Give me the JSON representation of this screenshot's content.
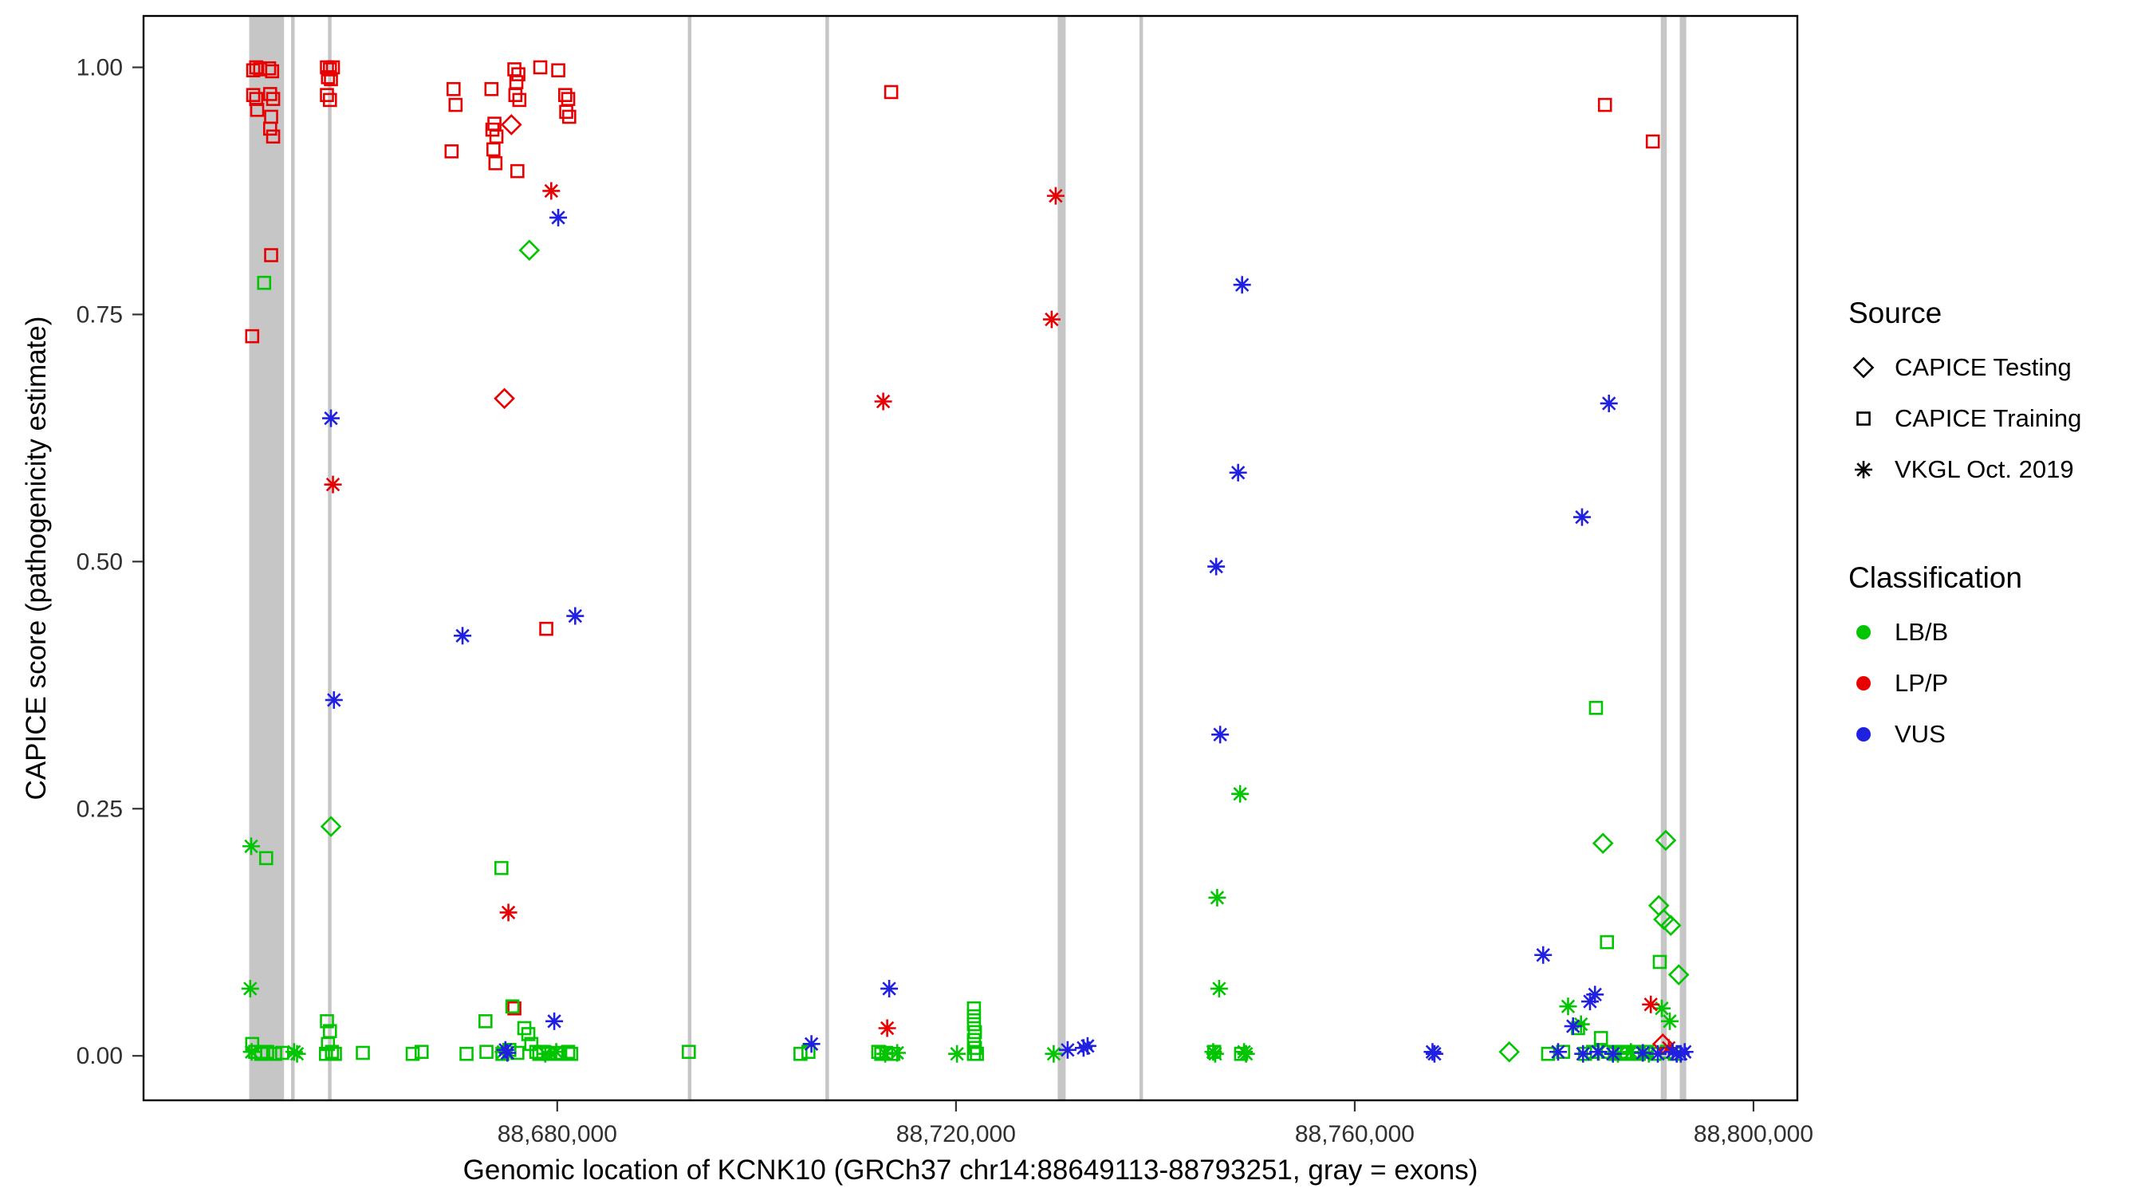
{
  "figure": {
    "background": "#ffffff"
  },
  "chart_data": {
    "type": "scatter",
    "title": "",
    "xlabel": "Genomic location of KCNK10 (GRCh37 chr14:88649113-88793251, gray = exons)",
    "ylabel": "CAPICE score (pathogenicity estimate)",
    "xlim": [
      88638500,
      88804400
    ],
    "ylim": [
      -0.045,
      1.052
    ],
    "grid": false,
    "legend_position": "right",
    "x_ticks": [
      {
        "value": 88680000,
        "label": "88,680,000"
      },
      {
        "value": 88720000,
        "label": "88,720,000"
      },
      {
        "value": 88760000,
        "label": "88,760,000"
      },
      {
        "value": 88800000,
        "label": "88,800,000"
      }
    ],
    "y_ticks": [
      {
        "value": 0.0,
        "label": "0.00"
      },
      {
        "value": 0.25,
        "label": "0.25"
      },
      {
        "value": 0.5,
        "label": "0.50"
      },
      {
        "value": 0.75,
        "label": "0.75"
      },
      {
        "value": 1.0,
        "label": "1.00"
      }
    ],
    "exon_color": "#c6c6c6",
    "exons": [
      [
        88649100,
        88652600
      ],
      [
        88653300,
        88653600
      ],
      [
        88657000,
        88657300
      ],
      [
        88693100,
        88693400
      ],
      [
        88706900,
        88707200
      ],
      [
        88730200,
        88731000
      ],
      [
        88738400,
        88738700
      ],
      [
        88790700,
        88791300
      ],
      [
        88792600,
        88793250
      ]
    ],
    "classes": {
      "LB/B": "#00c500",
      "LP/P": "#e80000",
      "VUS": "#2020e0"
    },
    "sources": {
      "CAPICE Testing": "diamond",
      "CAPICE Training": "square",
      "VKGL Oct. 2019": "asterisk"
    },
    "series": [
      {
        "name": "CAPICE Training / LP/P",
        "source": "CAPICE Training",
        "classification": "LP/P",
        "points": [
          [
            88649500,
            0.997
          ],
          [
            88649800,
            1.0
          ],
          [
            88650200,
            0.998
          ],
          [
            88651100,
            0.999
          ],
          [
            88651400,
            0.996
          ],
          [
            88649500,
            0.972
          ],
          [
            88649800,
            0.968
          ],
          [
            88651200,
            0.973
          ],
          [
            88651500,
            0.968
          ],
          [
            88649900,
            0.957
          ],
          [
            88651300,
            0.95
          ],
          [
            88651200,
            0.938
          ],
          [
            88651500,
            0.93
          ],
          [
            88651300,
            0.81
          ],
          [
            88649400,
            0.728
          ],
          [
            88656900,
            1.0
          ],
          [
            88657200,
            0.998
          ],
          [
            88657500,
            1.0
          ],
          [
            88657000,
            0.99
          ],
          [
            88657300,
            0.988
          ],
          [
            88656900,
            0.972
          ],
          [
            88657200,
            0.967
          ],
          [
            88669600,
            0.978
          ],
          [
            88669800,
            0.962
          ],
          [
            88669400,
            0.915
          ],
          [
            88673400,
            0.978
          ],
          [
            88673700,
            0.943
          ],
          [
            88673500,
            0.937
          ],
          [
            88673900,
            0.93
          ],
          [
            88673600,
            0.917
          ],
          [
            88673800,
            0.903
          ],
          [
            88675700,
            0.998
          ],
          [
            88676100,
            0.993
          ],
          [
            88675900,
            0.985
          ],
          [
            88675800,
            0.972
          ],
          [
            88676200,
            0.967
          ],
          [
            88676000,
            0.895
          ],
          [
            88678300,
            1.0
          ],
          [
            88680100,
            0.997
          ],
          [
            88680800,
            0.972
          ],
          [
            88681100,
            0.968
          ],
          [
            88680900,
            0.955
          ],
          [
            88681200,
            0.95
          ],
          [
            88678900,
            0.432
          ],
          [
            88675700,
            0.048
          ],
          [
            88713500,
            0.975
          ],
          [
            88785100,
            0.962
          ],
          [
            88789900,
            0.925
          ]
        ]
      },
      {
        "name": "CAPICE Training / LB/B",
        "source": "CAPICE Training",
        "classification": "LB/B",
        "points": [
          [
            88650600,
            0.782
          ],
          [
            88650800,
            0.2
          ],
          [
            88649400,
            0.012
          ],
          [
            88649700,
            0.004
          ],
          [
            88650300,
            0.002
          ],
          [
            88650900,
            0.004
          ],
          [
            88651700,
            0.002
          ],
          [
            88652400,
            0.003
          ],
          [
            88656900,
            0.035
          ],
          [
            88657200,
            0.025
          ],
          [
            88657000,
            0.012
          ],
          [
            88657400,
            0.004
          ],
          [
            88657700,
            0.002
          ],
          [
            88656800,
            0.002
          ],
          [
            88660500,
            0.003
          ],
          [
            88665500,
            0.002
          ],
          [
            88666400,
            0.004
          ],
          [
            88674400,
            0.19
          ],
          [
            88672800,
            0.035
          ],
          [
            88675500,
            0.05
          ],
          [
            88676700,
            0.028
          ],
          [
            88677100,
            0.022
          ],
          [
            88677400,
            0.012
          ],
          [
            88670900,
            0.002
          ],
          [
            88672900,
            0.004
          ],
          [
            88674500,
            0.002
          ],
          [
            88675200,
            0.006
          ],
          [
            88676000,
            0.003
          ],
          [
            88677900,
            0.004
          ],
          [
            88678200,
            0.002
          ],
          [
            88678600,
            0.004
          ],
          [
            88679100,
            0.002
          ],
          [
            88680000,
            0.003
          ],
          [
            88680300,
            0.002
          ],
          [
            88681100,
            0.004
          ],
          [
            88681400,
            0.002
          ],
          [
            88693200,
            0.004
          ],
          [
            88704400,
            0.002
          ],
          [
            88705200,
            0.004
          ],
          [
            88712200,
            0.004
          ],
          [
            88712500,
            0.002
          ],
          [
            88713000,
            0.003
          ],
          [
            88713700,
            0.002
          ],
          [
            88721800,
            0.048
          ],
          [
            88721800,
            0.04
          ],
          [
            88721800,
            0.032
          ],
          [
            88721900,
            0.024
          ],
          [
            88721800,
            0.016
          ],
          [
            88721900,
            0.008
          ],
          [
            88721800,
            0.002
          ],
          [
            88722100,
            0.002
          ],
          [
            88745900,
            0.004
          ],
          [
            88748600,
            0.002
          ],
          [
            88784200,
            0.352
          ],
          [
            88785300,
            0.115
          ],
          [
            88790600,
            0.095
          ],
          [
            88779400,
            0.002
          ],
          [
            88780900,
            0.004
          ],
          [
            88782400,
            0.028
          ],
          [
            88783100,
            0.002
          ],
          [
            88783900,
            0.004
          ],
          [
            88784700,
            0.018
          ],
          [
            88785400,
            0.004
          ],
          [
            88786100,
            0.002
          ],
          [
            88786700,
            0.004
          ],
          [
            88787300,
            0.002
          ],
          [
            88787900,
            0.004
          ],
          [
            88788500,
            0.002
          ],
          [
            88789300,
            0.004
          ],
          [
            88790100,
            0.002
          ],
          [
            88791300,
            0.004
          ],
          [
            88792100,
            0.002
          ]
        ]
      },
      {
        "name": "CAPICE Testing / LB/B",
        "source": "CAPICE Testing",
        "classification": "LB/B",
        "points": [
          [
            88657300,
            0.232
          ],
          [
            88677200,
            0.815
          ],
          [
            88775500,
            0.004
          ],
          [
            88784900,
            0.215
          ],
          [
            88791200,
            0.218
          ],
          [
            88790500,
            0.152
          ],
          [
            88791000,
            0.138
          ],
          [
            88791700,
            0.132
          ],
          [
            88792500,
            0.082
          ]
        ]
      },
      {
        "name": "CAPICE Testing / LP/P",
        "source": "CAPICE Testing",
        "classification": "LP/P",
        "points": [
          [
            88675400,
            0.942
          ],
          [
            88674700,
            0.665
          ],
          [
            88790900,
            0.012
          ]
        ]
      },
      {
        "name": "VKGL Oct. 2019 / LB/B",
        "source": "VKGL Oct. 2019",
        "classification": "LB/B",
        "points": [
          [
            88649300,
            0.212
          ],
          [
            88649200,
            0.068
          ],
          [
            88649350,
            0.004
          ],
          [
            88653600,
            0.004
          ],
          [
            88653900,
            0.002
          ],
          [
            88674600,
            0.004
          ],
          [
            88678800,
            0.002
          ],
          [
            88679900,
            0.004
          ],
          [
            88712900,
            0.002
          ],
          [
            88714100,
            0.003
          ],
          [
            88720100,
            0.002
          ],
          [
            88729800,
            0.002
          ],
          [
            88748500,
            0.265
          ],
          [
            88746200,
            0.16
          ],
          [
            88746400,
            0.068
          ],
          [
            88745800,
            0.004
          ],
          [
            88746000,
            0.002
          ],
          [
            88748900,
            0.004
          ],
          [
            88749100,
            0.002
          ],
          [
            88781400,
            0.05
          ],
          [
            88782700,
            0.032
          ],
          [
            88784500,
            0.004
          ],
          [
            88786400,
            0.002
          ],
          [
            88787700,
            0.004
          ],
          [
            88789500,
            0.002
          ],
          [
            88790800,
            0.048
          ],
          [
            88791600,
            0.035
          ]
        ]
      },
      {
        "name": "VKGL Oct. 2019 / LP/P",
        "source": "VKGL Oct. 2019",
        "classification": "LP/P",
        "points": [
          [
            88657500,
            0.578
          ],
          [
            88679400,
            0.875
          ],
          [
            88675100,
            0.145
          ],
          [
            88712700,
            0.662
          ],
          [
            88713100,
            0.028
          ],
          [
            88730000,
            0.87
          ],
          [
            88729600,
            0.745
          ],
          [
            88789700,
            0.052
          ],
          [
            88791500,
            0.008
          ]
        ]
      },
      {
        "name": "VKGL Oct. 2019 / VUS",
        "source": "VKGL Oct. 2019",
        "classification": "VUS",
        "points": [
          [
            88657300,
            0.645
          ],
          [
            88657600,
            0.36
          ],
          [
            88670500,
            0.425
          ],
          [
            88680100,
            0.848
          ],
          [
            88681800,
            0.445
          ],
          [
            88679700,
            0.035
          ],
          [
            88674800,
            0.006
          ],
          [
            88675000,
            0.003
          ],
          [
            88705500,
            0.012
          ],
          [
            88713300,
            0.068
          ],
          [
            88731200,
            0.006
          ],
          [
            88732800,
            0.008
          ],
          [
            88733200,
            0.01
          ],
          [
            88748700,
            0.78
          ],
          [
            88748300,
            0.59
          ],
          [
            88746100,
            0.495
          ],
          [
            88746500,
            0.325
          ],
          [
            88767800,
            0.004
          ],
          [
            88768000,
            0.002
          ],
          [
            88785500,
            0.66
          ],
          [
            88782800,
            0.545
          ],
          [
            88778900,
            0.102
          ],
          [
            88781900,
            0.03
          ],
          [
            88783600,
            0.055
          ],
          [
            88784100,
            0.062
          ],
          [
            88780400,
            0.004
          ],
          [
            88782900,
            0.002
          ],
          [
            88784400,
            0.004
          ],
          [
            88785900,
            0.002
          ],
          [
            88788900,
            0.003
          ],
          [
            88790400,
            0.002
          ],
          [
            88791900,
            0.004
          ],
          [
            88792700,
            0.002
          ],
          [
            88793100,
            0.004
          ],
          [
            88792300,
            0.002
          ]
        ]
      }
    ]
  },
  "legend": {
    "source_title": "Source",
    "source_items": [
      {
        "label": "CAPICE Testing",
        "shape": "diamond"
      },
      {
        "label": "CAPICE Training",
        "shape": "square"
      },
      {
        "label": "VKGL Oct. 2019",
        "shape": "asterisk"
      }
    ],
    "classification_title": "Classification",
    "classification_items": [
      {
        "label": "LB/B",
        "color": "#00c500"
      },
      {
        "label": "LP/P",
        "color": "#e80000"
      },
      {
        "label": "VUS",
        "color": "#2020e0"
      }
    ]
  }
}
